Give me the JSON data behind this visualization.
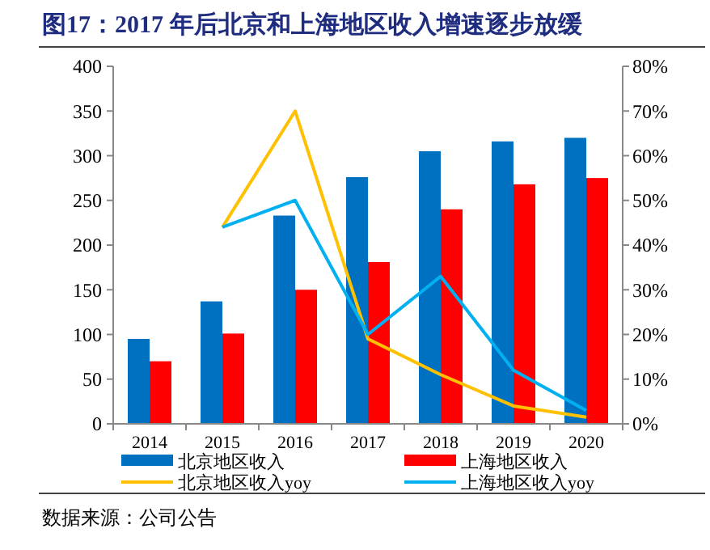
{
  "chart_data": {
    "type": "bar",
    "title": "图17：2017 年后北京和上海地区收入增速逐步放缓",
    "categories": [
      "2014",
      "2015",
      "2016",
      "2017",
      "2018",
      "2019",
      "2020"
    ],
    "series": [
      {
        "name": "北京地区收入",
        "color": "#0070c0",
        "values": [
          95,
          137,
          233,
          276,
          305,
          316,
          320
        ]
      },
      {
        "name": "上海地区收入",
        "color": "#ff0000",
        "values": [
          70,
          101,
          150,
          181,
          240,
          268,
          275
        ]
      },
      {
        "name": "北京地区收入yoy",
        "type": "line",
        "axis": "y2",
        "color": "#ffc000",
        "values": [
          null,
          44,
          70,
          19,
          11,
          4,
          1.5
        ]
      },
      {
        "name": "上海地区收入yoy",
        "type": "line",
        "axis": "y2",
        "color": "#00b0f0",
        "values": [
          null,
          44,
          50,
          20,
          33,
          12,
          3
        ]
      }
    ],
    "ylim": [
      0,
      400
    ],
    "yticks": [
      0,
      50,
      100,
      150,
      200,
      250,
      300,
      350,
      400
    ],
    "y2lim": [
      0,
      80
    ],
    "y2ticks": [
      {
        "value": 0,
        "label": "0%"
      },
      {
        "value": 10,
        "label": "10%"
      },
      {
        "value": 20,
        "label": "20%"
      },
      {
        "value": 30,
        "label": "30%"
      },
      {
        "value": 40,
        "label": "40%"
      },
      {
        "value": 50,
        "label": "50%"
      },
      {
        "value": 60,
        "label": "60%"
      },
      {
        "value": 70,
        "label": "70%"
      },
      {
        "value": 80,
        "label": "80%"
      }
    ],
    "legend": "bottom",
    "grid": false,
    "annotations": [
      "数据来源：公司公告"
    ]
  }
}
